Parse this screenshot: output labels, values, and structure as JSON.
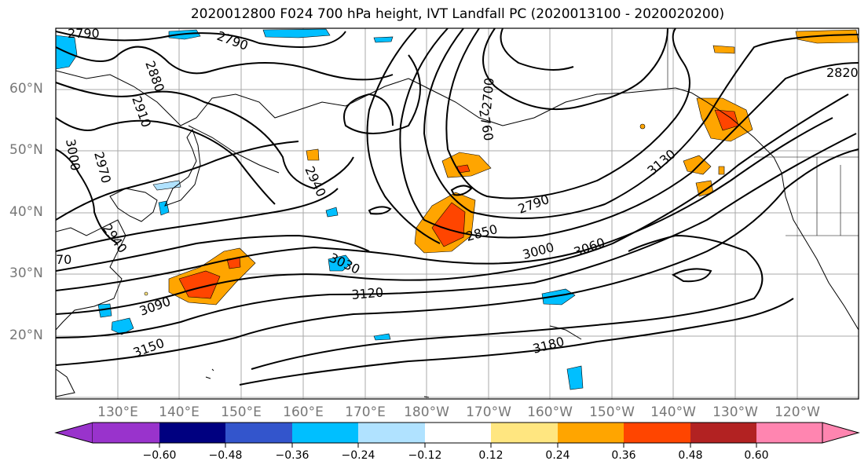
{
  "title": "2020012800 F024 700 hPa height, IVT Landfall PC (2020013100 - 2020020200)",
  "lat_labels": [
    "60°N",
    "50°N",
    "40°N",
    "30°N",
    "20°N"
  ],
  "lon_labels": [
    "130°E",
    "140°E",
    "150°E",
    "160°E",
    "170°E",
    "180°W",
    "170°W",
    "160°W",
    "150°W",
    "140°W",
    "130°W",
    "120°W"
  ],
  "contour_labels": [
    "2790",
    "2880",
    "2910",
    "3000",
    "2970",
    "2940",
    "2700",
    "2760",
    "2940",
    "3130",
    "2790",
    "2850",
    "3000",
    "3060",
    "3030",
    "3090",
    "3120",
    "3150",
    "3180",
    "2820",
    "70",
    "2790"
  ],
  "colorbar": {
    "tick_labels": [
      "−0.60",
      "−0.48",
      "−0.36",
      "−0.24",
      "−0.12",
      "0.12",
      "0.24",
      "0.36",
      "0.48",
      "0.60"
    ],
    "colors": [
      "#9933cc",
      "#000080",
      "#3355cc",
      "#00bfff",
      "#b0e2ff",
      "#ffffff",
      "#ffe680",
      "#ffa500",
      "#ff4500",
      "#b22222",
      "#ff85b0"
    ]
  }
}
